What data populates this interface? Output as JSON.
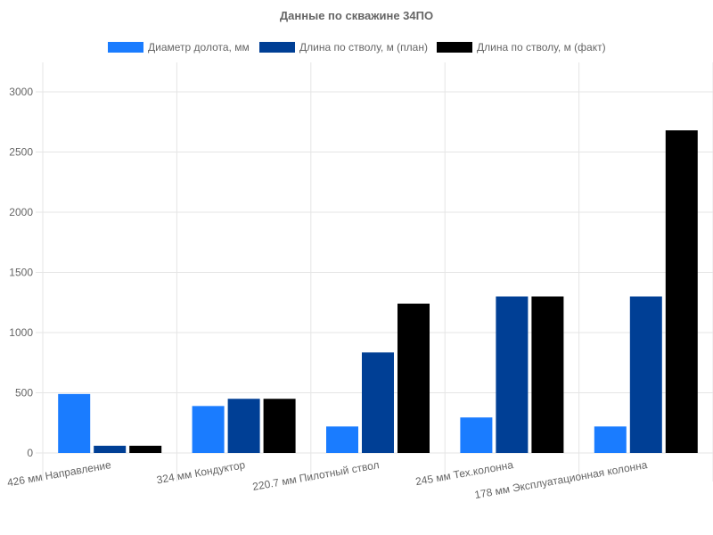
{
  "chart_data": {
    "type": "bar",
    "title": "Данные по скважине 34ПО",
    "categories": [
      "426 мм Направление",
      "324 мм Кондуктор",
      "220.7 мм Пилотный ствол",
      "245 мм Тех.колонна",
      "178 мм Эксплуатационная колонна"
    ],
    "series": [
      {
        "name": "Диаметр долота, мм",
        "color": "#1a7cff",
        "values": [
          490,
          390,
          220,
          295,
          220
        ]
      },
      {
        "name": "Длина по стволу, м (план)",
        "color": "#003f95",
        "values": [
          60,
          450,
          835,
          1300,
          1300
        ]
      },
      {
        "name": "Длина по стволу, м (факт)",
        "color": "#000000",
        "values": [
          60,
          450,
          1240,
          1300,
          2680
        ]
      }
    ],
    "yticks": [
      0,
      500,
      1000,
      1500,
      2000,
      2500,
      3000
    ],
    "ylim": [
      0,
      3000
    ],
    "grid": true,
    "legend_position": "top"
  }
}
